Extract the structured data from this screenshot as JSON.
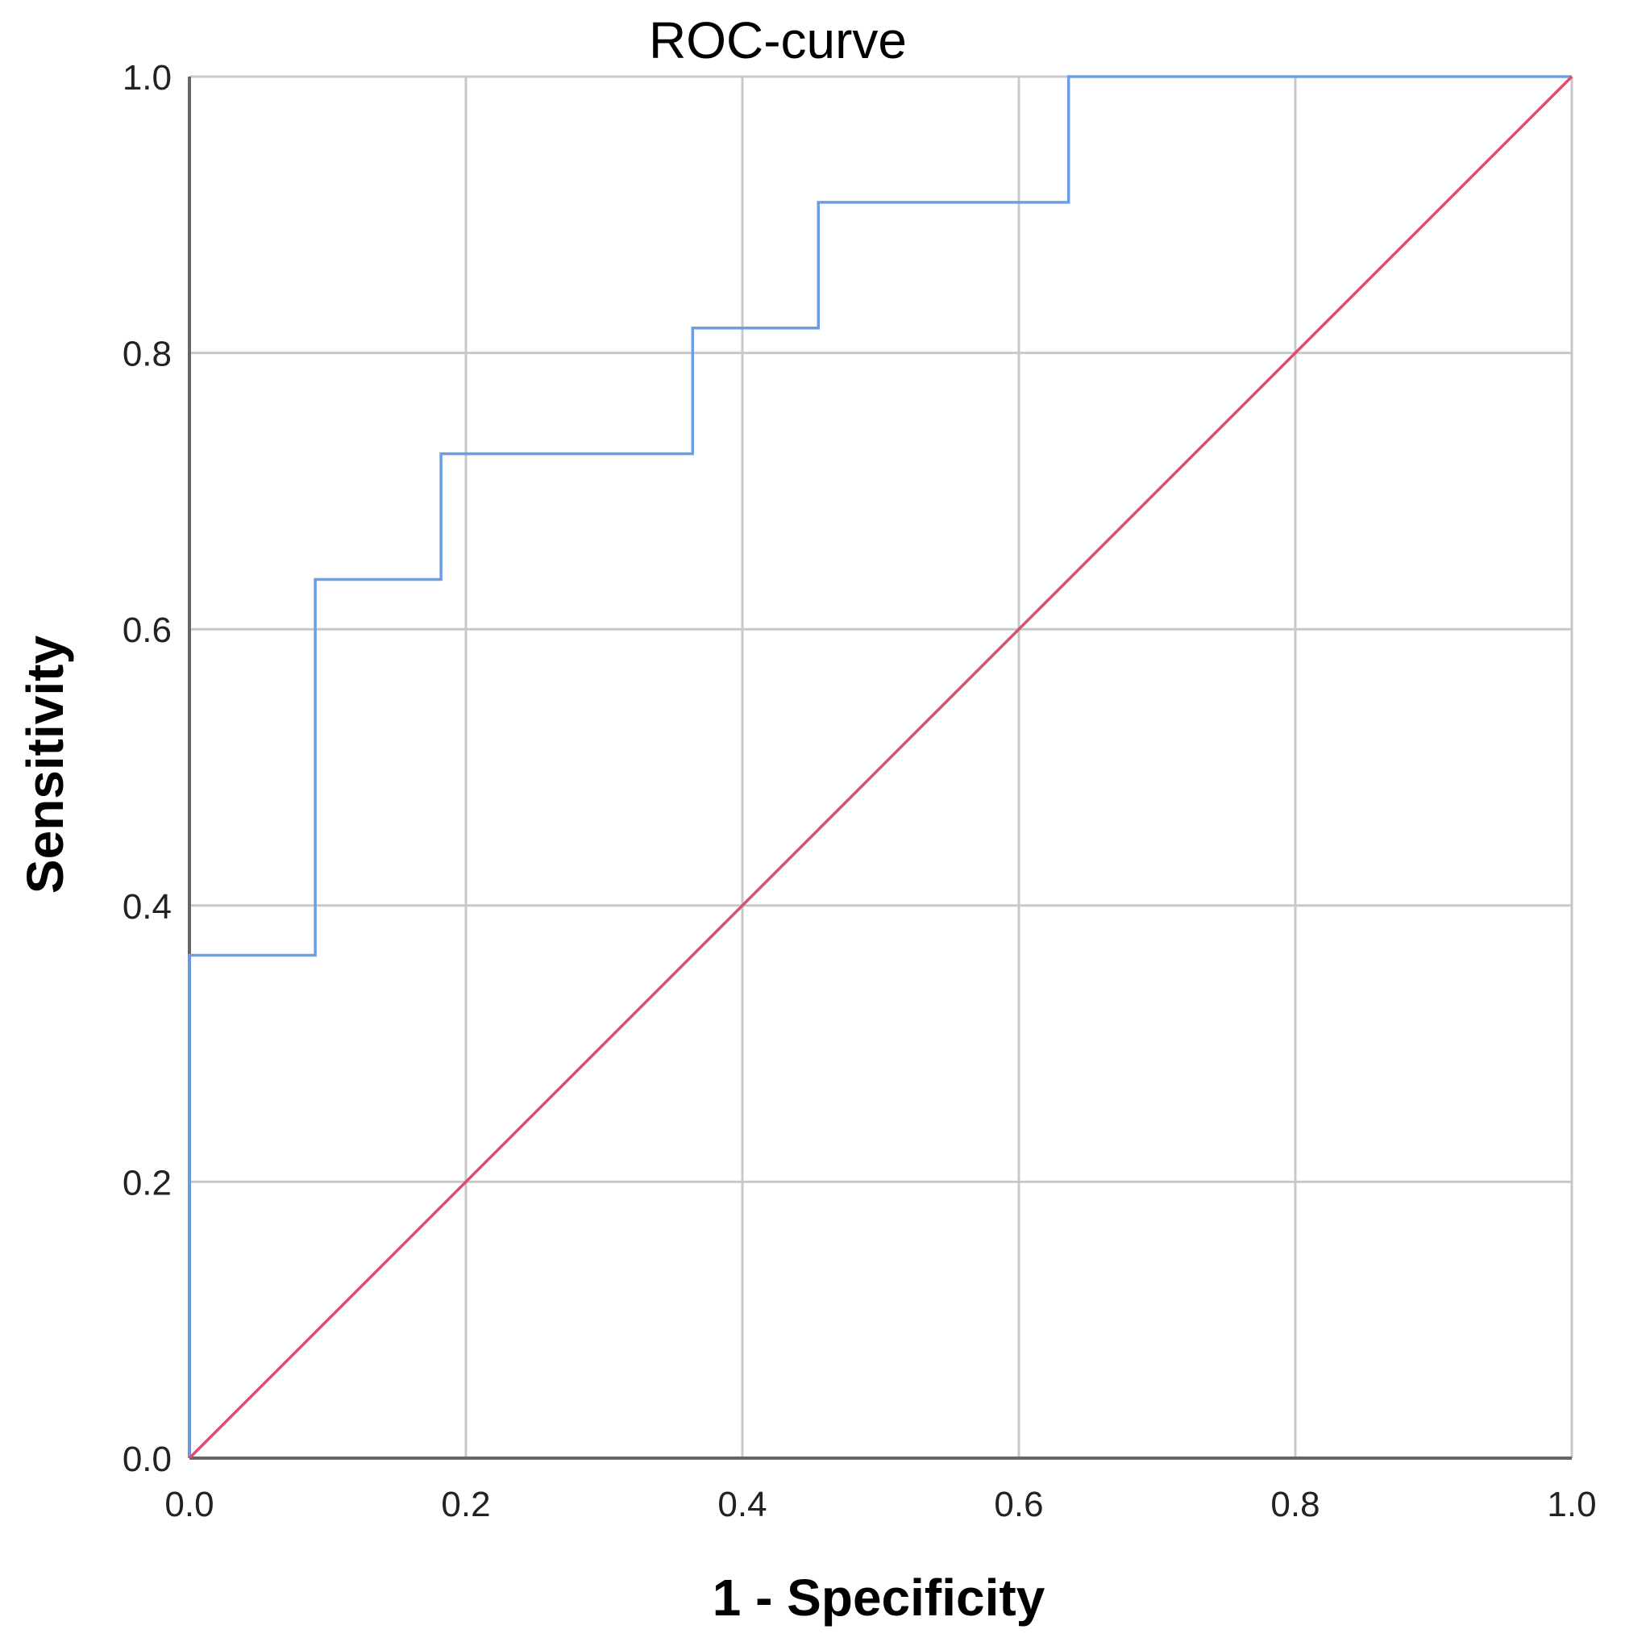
{
  "chart_data": {
    "type": "line",
    "title": "ROC-curve",
    "xlabel": "1 - Specificity",
    "ylabel": "Sensitivity",
    "xlim": [
      0,
      1
    ],
    "ylim": [
      0,
      1
    ],
    "x_ticks": [
      "0.0",
      "0.2",
      "0.4",
      "0.6",
      "0.8",
      "1.0"
    ],
    "y_ticks": [
      "0.0",
      "0.2",
      "0.4",
      "0.6",
      "0.8",
      "1.0"
    ],
    "grid": true,
    "legend": "none",
    "series": [
      {
        "color": "#6a9ee8",
        "step": true,
        "points": [
          [
            0.0,
            0.0
          ],
          [
            0.0,
            0.364
          ],
          [
            0.091,
            0.364
          ],
          [
            0.091,
            0.636
          ],
          [
            0.182,
            0.636
          ],
          [
            0.182,
            0.727
          ],
          [
            0.364,
            0.727
          ],
          [
            0.364,
            0.818
          ],
          [
            0.455,
            0.818
          ],
          [
            0.455,
            0.909
          ],
          [
            0.636,
            0.909
          ],
          [
            0.636,
            1.0
          ],
          [
            1.0,
            1.0
          ]
        ]
      },
      {
        "color": "#d9506a",
        "step": false,
        "points": [
          [
            0.0,
            0.0
          ],
          [
            1.0,
            1.0
          ]
        ]
      }
    ]
  }
}
